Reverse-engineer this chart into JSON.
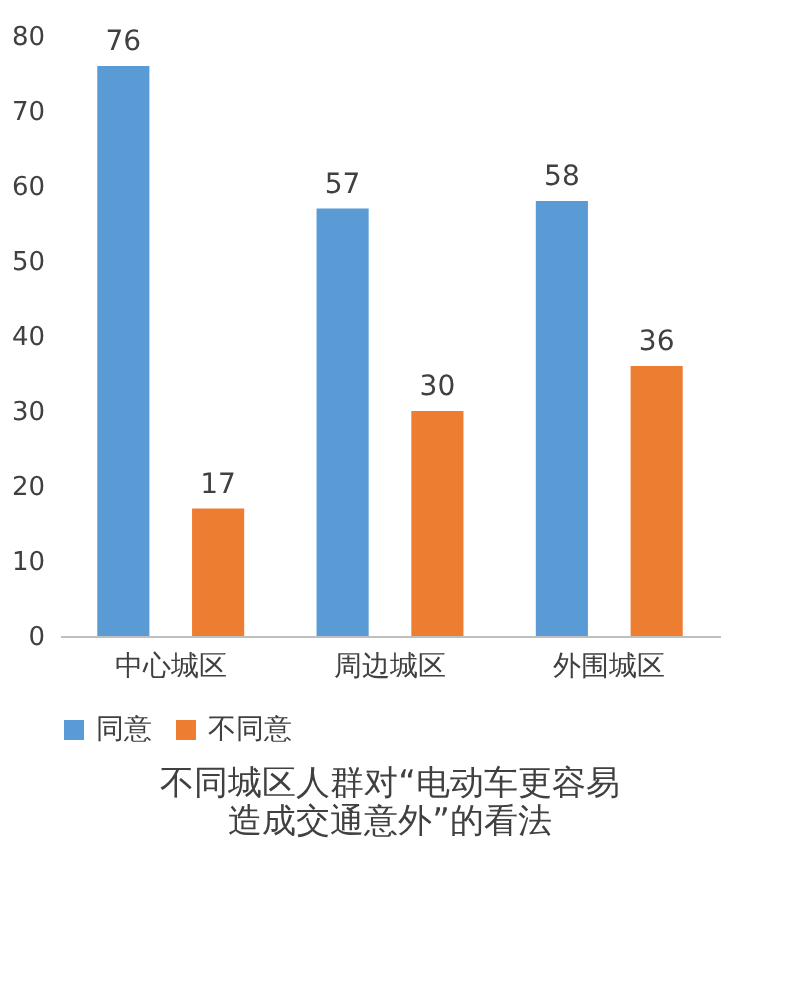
{
  "chart_data": {
    "type": "bar",
    "title": "不同城区人群对“电动车更容易造成交通意外”的看法",
    "categories": [
      "中心城区",
      "周边城区",
      "外围城区"
    ],
    "series": [
      {
        "name": "同意",
        "color": "#5b9bd5",
        "values": [
          76,
          57,
          58
        ]
      },
      {
        "name": "不同意",
        "color": "#ed7d31",
        "values": [
          17,
          30,
          36
        ]
      }
    ],
    "ylim": [
      0,
      80
    ],
    "yticks": [
      0,
      10,
      20,
      30,
      40,
      50,
      60,
      70,
      80
    ],
    "data_labels": true,
    "legend": "bottom"
  }
}
